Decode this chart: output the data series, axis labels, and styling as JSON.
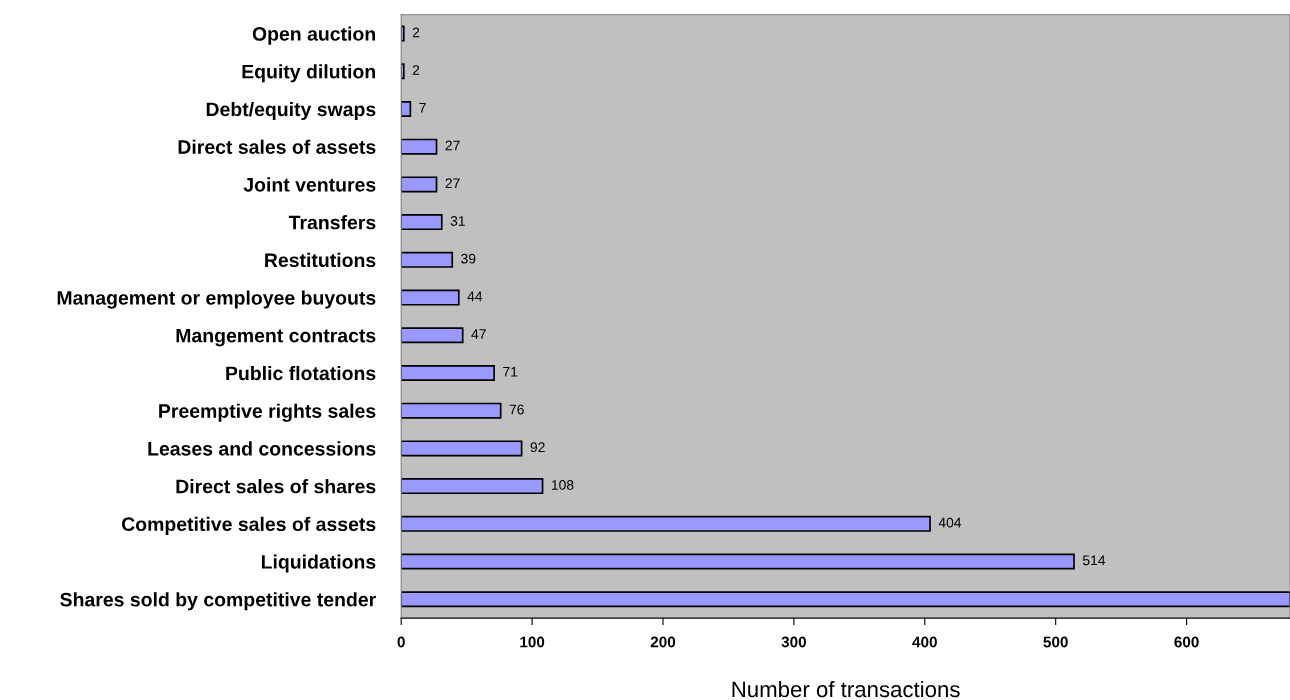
{
  "chart_data": {
    "type": "bar",
    "orientation": "horizontal",
    "xlabel": "Number of transactions",
    "categories": [
      "Open auction",
      "Equity dilution",
      "Debt/equity swaps",
      "Direct sales of assets",
      "Joint ventures",
      "Transfers",
      "Restitutions",
      "Management or employee buyouts",
      "Mangement contracts",
      "Public flotations",
      "Preemptive rights sales",
      "Leases and concessions",
      "Direct sales of shares",
      "Competitive sales of assets",
      "Liquidations",
      "Shares sold by competitive tender"
    ],
    "values": [
      2,
      2,
      7,
      27,
      27,
      31,
      39,
      44,
      47,
      71,
      76,
      92,
      108,
      404,
      514,
      679
    ],
    "value_labels": [
      "2",
      "2",
      "7",
      "27",
      "27",
      "31",
      "39",
      "44",
      "47",
      "71",
      "76",
      "92",
      "108",
      "404",
      "514",
      null
    ],
    "color": "#9999ff",
    "xlim": [
      0,
      679
    ],
    "xticks": [
      0,
      100,
      200,
      300,
      400,
      500,
      600
    ],
    "grid": false,
    "legend": false
  }
}
